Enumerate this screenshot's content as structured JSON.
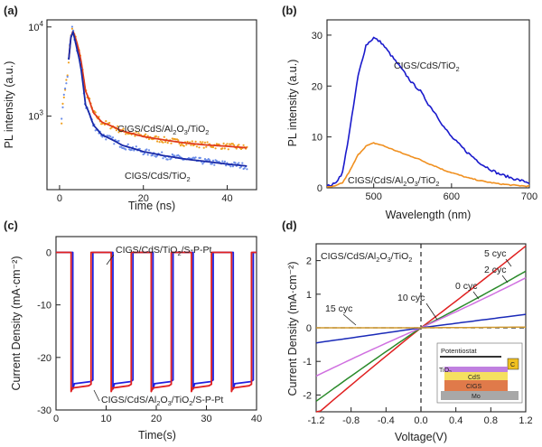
{
  "chart_data": [
    {
      "panel": "(a)",
      "type": "scatter",
      "xlabel": "Time (ns)",
      "ylabel": "PL intensity (a.u.)",
      "xlim": [
        -3,
        47
      ],
      "ylim": [
        150,
        12000
      ],
      "yscale": "log",
      "xticks": [
        "0",
        "20",
        "40"
      ],
      "yticks": [
        {
          "base": "10",
          "exp": "3",
          "value": 1000
        },
        {
          "base": "10",
          "exp": "4",
          "value": 10000
        }
      ],
      "series": [
        {
          "name": "CIGS/CdS/Al2O3/TiO2",
          "label_main": "CIGS/CdS/Al",
          "label_sub1": "2",
          "label_mid": "O",
          "label_sub2": "3",
          "label_end": "/TiO",
          "label_sub3": "2",
          "dot_color": "#f0a020",
          "fit_color": "#e03a1a",
          "x": [
            0,
            2,
            3,
            4,
            6,
            8,
            10,
            15,
            20,
            25,
            30,
            35,
            40,
            45
          ],
          "y": [
            200,
            3000,
            9500,
            7000,
            2000,
            1100,
            860,
            680,
            590,
            540,
            500,
            475,
            460,
            440
          ]
        },
        {
          "name": "CIGS/CdS/TiO2",
          "label_main": "CIGS/CdS/TiO",
          "label_sub1": "2",
          "dot_color": "#6a8ce8",
          "fit_color": "#1a2aa8",
          "x": [
            0,
            2,
            3,
            4,
            6,
            8,
            10,
            15,
            20,
            25,
            30,
            35,
            40,
            45
          ],
          "y": [
            200,
            3000,
            9500,
            6000,
            1400,
            800,
            620,
            470,
            400,
            360,
            330,
            310,
            290,
            275
          ]
        }
      ]
    },
    {
      "panel": "(b)",
      "type": "line",
      "xlabel": "Wavelength (nm)",
      "ylabel": "PL intensity (a.u.)",
      "xlim": [
        440,
        700
      ],
      "ylim": [
        0,
        33
      ],
      "xticks": [
        500,
        600,
        700
      ],
      "yticks": [
        0,
        10,
        20,
        30
      ],
      "series": [
        {
          "name": "CIGS/CdS/TiO2",
          "label_main": "CIGS/CdS/TiO",
          "label_sub1": "2",
          "color": "#1a1acc",
          "x": [
            440,
            450,
            460,
            470,
            480,
            490,
            500,
            510,
            520,
            530,
            540,
            550,
            560,
            570,
            580,
            590,
            600,
            620,
            640,
            660,
            680,
            700
          ],
          "y": [
            0.3,
            0.8,
            3,
            12,
            22,
            28,
            29.5,
            28.5,
            26.5,
            24.5,
            22.5,
            20.5,
            19,
            16.5,
            14.5,
            12,
            10,
            7,
            4.5,
            2.8,
            1.8,
            1
          ]
        },
        {
          "name": "CIGS/CdS/Al2O3/TiO2",
          "label_main": "CIGS/CdS/Al",
          "label_sub1": "2",
          "label_mid": "O",
          "label_sub2": "3",
          "label_end": "/TiO",
          "label_sub3": "2",
          "color": "#f09020",
          "x": [
            440,
            450,
            460,
            470,
            480,
            490,
            500,
            510,
            520,
            530,
            540,
            550,
            560,
            570,
            580,
            590,
            600,
            620,
            640,
            660,
            680,
            700
          ],
          "y": [
            0.1,
            0.3,
            1,
            3.5,
            6.5,
            8.2,
            8.8,
            8.4,
            7.8,
            7.2,
            6.6,
            6.1,
            5.5,
            4.8,
            4.2,
            3.5,
            3,
            2,
            1.3,
            0.8,
            0.5,
            0.3
          ]
        }
      ]
    },
    {
      "panel": "(c)",
      "type": "line",
      "xlabel": "Time(s)",
      "ylabel": "Current Density (mA·cm⁻²)",
      "xlim": [
        0,
        40
      ],
      "ylim": [
        -30,
        3
      ],
      "xticks": [
        0,
        10,
        20,
        30,
        40
      ],
      "yticks": [
        0,
        -10,
        -20,
        -30
      ],
      "period_s": 8,
      "light_on_s": [
        3,
        11,
        19,
        27,
        35
      ],
      "light_off_s": [
        7,
        15,
        23,
        31,
        39
      ],
      "series": [
        {
          "name": "CIGS/CdS/TiO2/S-P-Pt",
          "label_main": "CIGS/CdS/TiO",
          "label_sub1": "2",
          "label_end": "/S-P-Pt",
          "color": "#2020e0",
          "dark_value": 0,
          "light_value": -25,
          "spike_value": -26
        },
        {
          "name": "CIGS/CdS/Al2O3/TiO2/S-P-Pt",
          "label_main": "CIGS/CdS/Al",
          "label_sub1": "2",
          "label_mid": "O",
          "label_sub2": "3",
          "label_end": "/TiO",
          "label_sub3": "2",
          "label_tail": "/S-P-Pt",
          "color": "#e02020",
          "dark_value": 0,
          "light_value": -25.8,
          "spike_value": -26.5
        }
      ]
    },
    {
      "panel": "(d)",
      "type": "line",
      "title_main": "CIGS/CdS/Al",
      "title_sub1": "2",
      "title_mid": "O",
      "title_sub2": "3",
      "title_end": "/TiO",
      "title_sub3": "2",
      "xlabel": "Voltage(V)",
      "ylabel": "Current Density (mA·cm⁻²)",
      "xlim": [
        -1.2,
        1.2
      ],
      "ylim": [
        -2.5,
        2.5
      ],
      "xticks": [
        "-1.2",
        "-0.8",
        "-0.4",
        "0.0",
        "0.4",
        "0.8",
        "1.2"
      ],
      "yticks": [
        2,
        1,
        0,
        -1,
        -2
      ],
      "series": [
        {
          "name": "5 cyc",
          "color": "#e02020",
          "x": [
            -1.2,
            0,
            1.2
          ],
          "y": [
            -2.5,
            0,
            2.35
          ]
        },
        {
          "name": "2 cyc",
          "color": "#2a8a2a",
          "x": [
            -1.2,
            0,
            1.2
          ],
          "y": [
            -2.1,
            0,
            1.6
          ]
        },
        {
          "name": "0 cyc",
          "color": "#d070e0",
          "x": [
            -1.2,
            0,
            1.2
          ],
          "y": [
            -1.35,
            0,
            1.4
          ]
        },
        {
          "name": "10 cyc",
          "color": "#1a2ab8",
          "x": [
            -1.2,
            0,
            1.2
          ],
          "y": [
            -0.45,
            0,
            0.4
          ]
        },
        {
          "name": "15 cyc",
          "color": "#d09a30",
          "x": [
            -1.2,
            0,
            1.2
          ],
          "y": [
            0.0,
            0,
            0.02
          ]
        }
      ],
      "inset": {
        "potentiostat": "Potentiostat",
        "c_label": "C",
        "layers": [
          "TiO",
          "CdS",
          "CIGS",
          "Mo"
        ],
        "tio_sub": "2"
      }
    }
  ]
}
